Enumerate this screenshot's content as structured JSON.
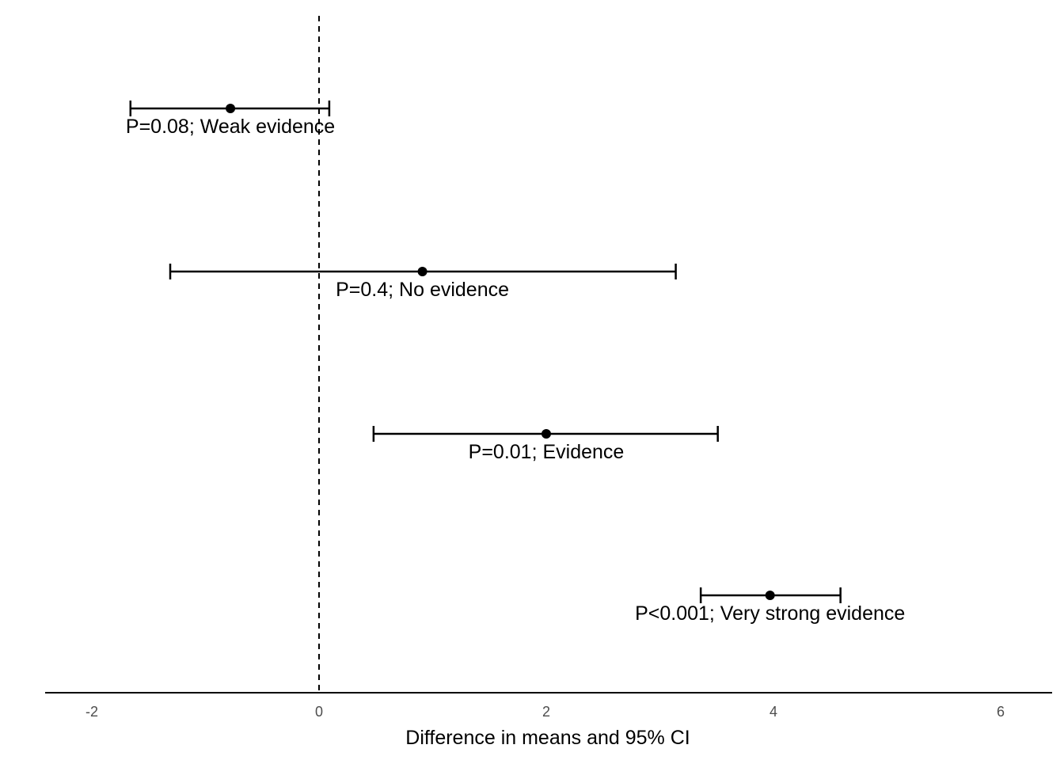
{
  "chart_data": {
    "type": "scatter",
    "subtype": "point-range (difference in means with 95% CI)",
    "title": "",
    "xlabel": "Difference in means and 95% CI",
    "ylabel": "",
    "xlim": [
      -2.4,
      6.4
    ],
    "xticks": [
      -2,
      0,
      2,
      4,
      6
    ],
    "xtick_labels": [
      "-2",
      "0",
      "2",
      "4",
      "6"
    ],
    "reference_line": {
      "x": 0,
      "style": "dashed"
    },
    "grid": false,
    "rows": [
      {
        "estimate": -0.78,
        "lower": -1.66,
        "upper": 0.09,
        "label": "P=0.08; Weak evidence"
      },
      {
        "estimate": 0.91,
        "lower": -1.31,
        "upper": 3.14,
        "label": "P=0.4; No evidence"
      },
      {
        "estimate": 2.0,
        "lower": 0.48,
        "upper": 3.51,
        "label": "P=0.01; Evidence"
      },
      {
        "estimate": 3.97,
        "lower": 3.36,
        "upper": 4.59,
        "label": "P<0.001; Very strong evidence"
      }
    ]
  }
}
